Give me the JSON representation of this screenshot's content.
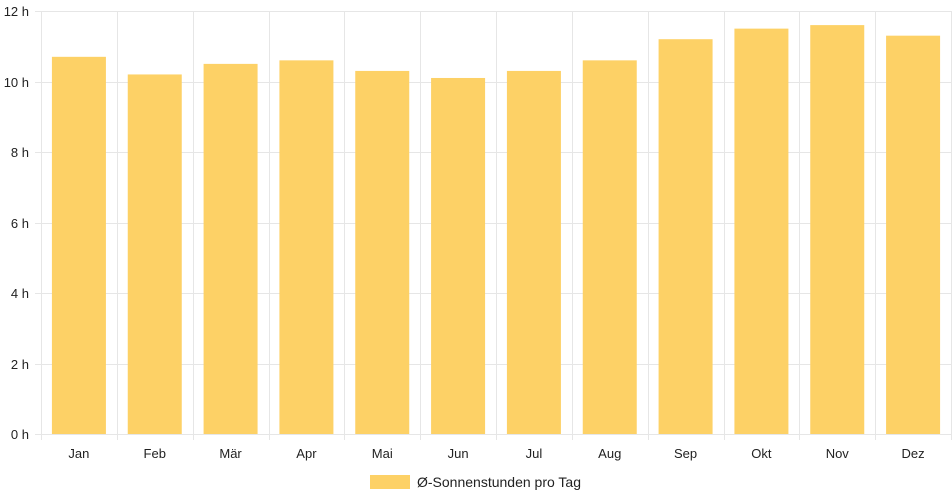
{
  "chart_data": {
    "type": "bar",
    "categories": [
      "Jan",
      "Feb",
      "Mär",
      "Apr",
      "Mai",
      "Jun",
      "Jul",
      "Aug",
      "Sep",
      "Okt",
      "Nov",
      "Dez"
    ],
    "series": [
      {
        "name": "Ø-Sonnenstunden pro Tag",
        "values": [
          10.7,
          10.2,
          10.5,
          10.6,
          10.3,
          10.1,
          10.3,
          10.6,
          11.2,
          11.5,
          11.6,
          11.3
        ],
        "color": "#fdd166"
      }
    ],
    "ylim": [
      0,
      12
    ],
    "yticks": [
      0,
      2,
      4,
      6,
      8,
      10,
      12
    ],
    "ytick_unit": "h",
    "grid": true,
    "gridColor": "#e6e6e6",
    "legend": "bottom"
  }
}
